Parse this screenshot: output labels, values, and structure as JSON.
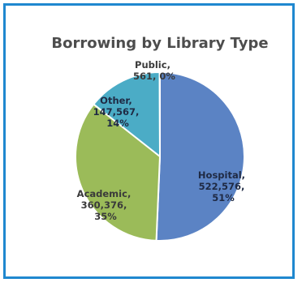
{
  "chart_data": {
    "type": "pie",
    "title": "Borrowing by Library Type",
    "slices": [
      {
        "name": "Hospital",
        "value": 522576,
        "value_label": "522,576,",
        "percent_label": "51%",
        "color": "#5b83c4"
      },
      {
        "name": "Academic",
        "value": 360376,
        "value_label": "360,376,",
        "percent_label": "35%",
        "color": "#9bbb59"
      },
      {
        "name": "Other",
        "value": 147567,
        "value_label": "147,567,",
        "percent_label": "14%",
        "color": "#4bacc6"
      },
      {
        "name": "Public",
        "value": 561,
        "value_label": "561, 0%",
        "percent_label": "",
        "color": "#f2e05a"
      }
    ]
  }
}
